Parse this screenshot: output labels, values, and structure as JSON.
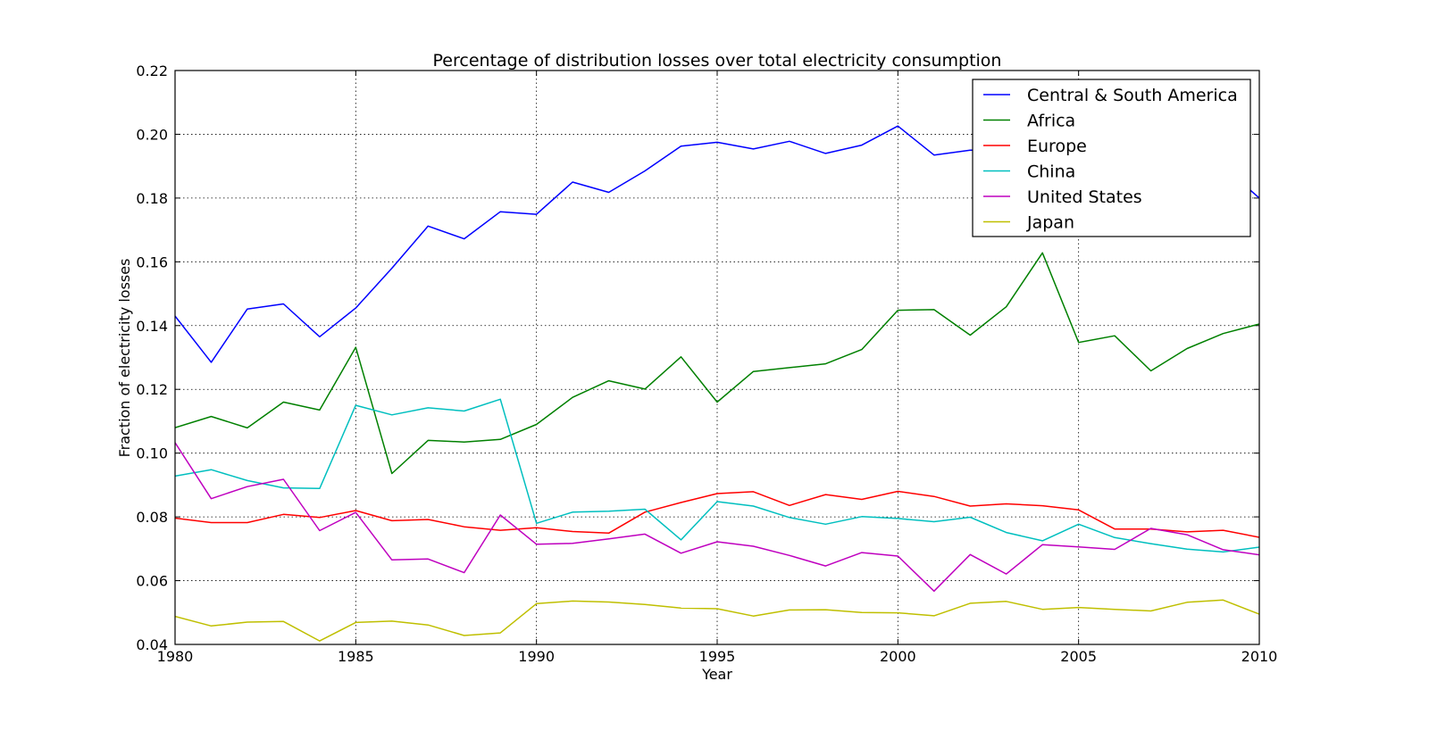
{
  "chart_data": {
    "type": "line",
    "title": "Percentage of distribution losses over total electricity consumption",
    "xlabel": "Year",
    "ylabel": "Fraction of electricity losses",
    "xlim": [
      1980,
      2010
    ],
    "ylim": [
      0.04,
      0.22
    ],
    "x_ticks": [
      1980,
      1985,
      1990,
      1995,
      2000,
      2005,
      2010
    ],
    "y_ticks": [
      0.04,
      0.06,
      0.08,
      0.1,
      0.12,
      0.14,
      0.16,
      0.18,
      0.2,
      0.22
    ],
    "y_tick_labels": [
      "0.04",
      "0.06",
      "0.08",
      "0.10",
      "0.12",
      "0.14",
      "0.16",
      "0.18",
      "0.20",
      "0.22"
    ],
    "grid": true,
    "legend_position": "top-right",
    "x": [
      1980,
      1981,
      1982,
      1983,
      1984,
      1985,
      1986,
      1987,
      1988,
      1989,
      1990,
      1991,
      1992,
      1993,
      1994,
      1995,
      1996,
      1997,
      1998,
      1999,
      2000,
      2001,
      2002,
      2003,
      2004,
      2005,
      2006,
      2007,
      2008,
      2009,
      2010
    ],
    "series": [
      {
        "name": "Central & South America",
        "color": "#0000ff",
        "values": [
          0.143,
          0.1285,
          0.1452,
          0.1468,
          0.1365,
          0.1455,
          0.158,
          0.1712,
          0.1672,
          0.1757,
          0.1749,
          0.185,
          0.1818,
          0.1885,
          0.1963,
          0.1975,
          0.1954,
          0.1978,
          0.194,
          0.1966,
          0.2026,
          0.1935,
          0.195,
          0.1952,
          0.1965,
          0.196,
          0.1975,
          0.197,
          0.19,
          0.19,
          0.18
        ]
      },
      {
        "name": "Africa",
        "color": "#008000",
        "values": [
          0.108,
          0.1115,
          0.1079,
          0.116,
          0.1135,
          0.1332,
          0.0936,
          0.104,
          0.1035,
          0.1043,
          0.109,
          0.1175,
          0.1227,
          0.1201,
          0.1302,
          0.116,
          0.1256,
          0.1268,
          0.128,
          0.1325,
          0.1448,
          0.145,
          0.137,
          0.1459,
          0.1628,
          0.1347,
          0.1368,
          0.1258,
          0.1328,
          0.1375,
          0.1405
        ]
      },
      {
        "name": "Europe",
        "color": "#ff0000",
        "values": [
          0.0796,
          0.0782,
          0.0782,
          0.0808,
          0.0798,
          0.082,
          0.0788,
          0.0792,
          0.0769,
          0.0758,
          0.0766,
          0.0754,
          0.0749,
          0.0815,
          0.0845,
          0.0873,
          0.0879,
          0.0836,
          0.087,
          0.0855,
          0.088,
          0.0864,
          0.0834,
          0.0841,
          0.0835,
          0.0822,
          0.0762,
          0.0762,
          0.0753,
          0.0758,
          0.0736
        ]
      },
      {
        "name": "China",
        "color": "#00bfbf",
        "values": [
          0.0928,
          0.0948,
          0.0914,
          0.0891,
          0.0889,
          0.115,
          0.112,
          0.1142,
          0.1132,
          0.1169,
          0.078,
          0.0815,
          0.0818,
          0.0824,
          0.0728,
          0.0848,
          0.0834,
          0.0798,
          0.0777,
          0.0801,
          0.0795,
          0.0785,
          0.0799,
          0.0751,
          0.0725,
          0.0777,
          0.0735,
          0.0716,
          0.0699,
          0.069,
          0.0705
        ]
      },
      {
        "name": "United States",
        "color": "#bf00bf",
        "values": [
          0.1033,
          0.0857,
          0.0895,
          0.0918,
          0.0757,
          0.0814,
          0.0665,
          0.0668,
          0.0625,
          0.0806,
          0.0714,
          0.0717,
          0.0731,
          0.0746,
          0.0686,
          0.0722,
          0.0708,
          0.0679,
          0.0646,
          0.0688,
          0.0677,
          0.0567,
          0.0682,
          0.0621,
          0.0713,
          0.0706,
          0.0698,
          0.0764,
          0.0744,
          0.0697,
          0.0681
        ]
      },
      {
        "name": "Japan",
        "color": "#bfbf00",
        "values": [
          0.0488,
          0.0458,
          0.047,
          0.0472,
          0.0411,
          0.0469,
          0.0473,
          0.0461,
          0.0428,
          0.0436,
          0.0528,
          0.0536,
          0.0533,
          0.0525,
          0.0514,
          0.0512,
          0.0489,
          0.0508,
          0.0509,
          0.05,
          0.0499,
          0.049,
          0.0529,
          0.0535,
          0.051,
          0.0516,
          0.051,
          0.0505,
          0.0532,
          0.0539,
          0.0495
        ]
      }
    ]
  }
}
